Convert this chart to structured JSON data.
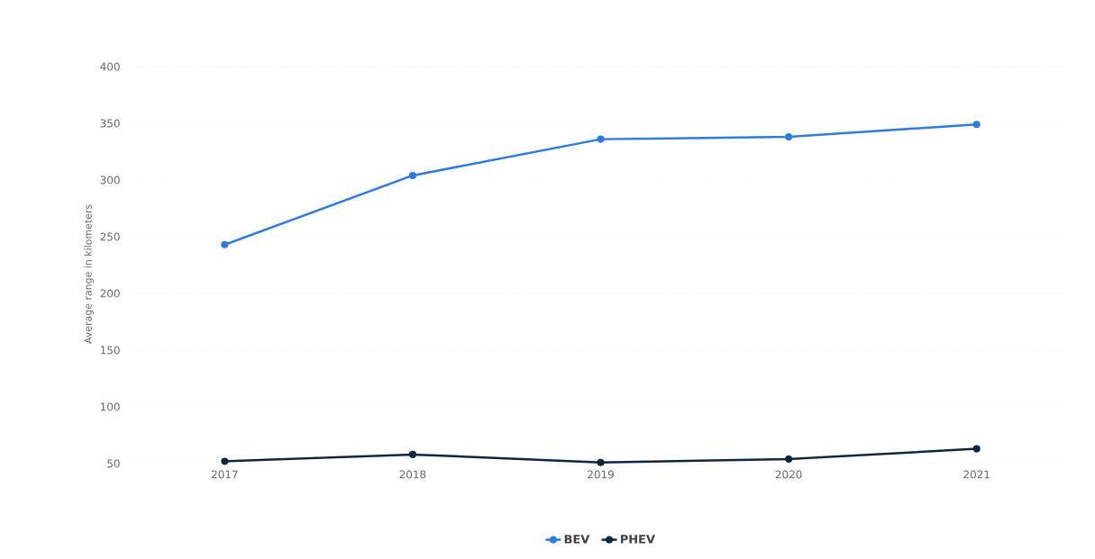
{
  "chart_data": {
    "type": "line",
    "ylabel": "Average range in kilometers",
    "categories": [
      "2017",
      "2018",
      "2019",
      "2020",
      "2021"
    ],
    "series": [
      {
        "name": "BEV",
        "color": "#2b7be0",
        "values": [
          243,
          304,
          336,
          338,
          349
        ]
      },
      {
        "name": "PHEV",
        "color": "#0f2640",
        "values": [
          52,
          58,
          51,
          54,
          63
        ]
      }
    ],
    "ylim": [
      50,
      400
    ],
    "yticks": [
      50,
      100,
      150,
      200,
      250,
      300,
      350,
      400
    ],
    "grid": "y",
    "legend": "bottom",
    "marker": "circle",
    "line_style": "solid"
  }
}
